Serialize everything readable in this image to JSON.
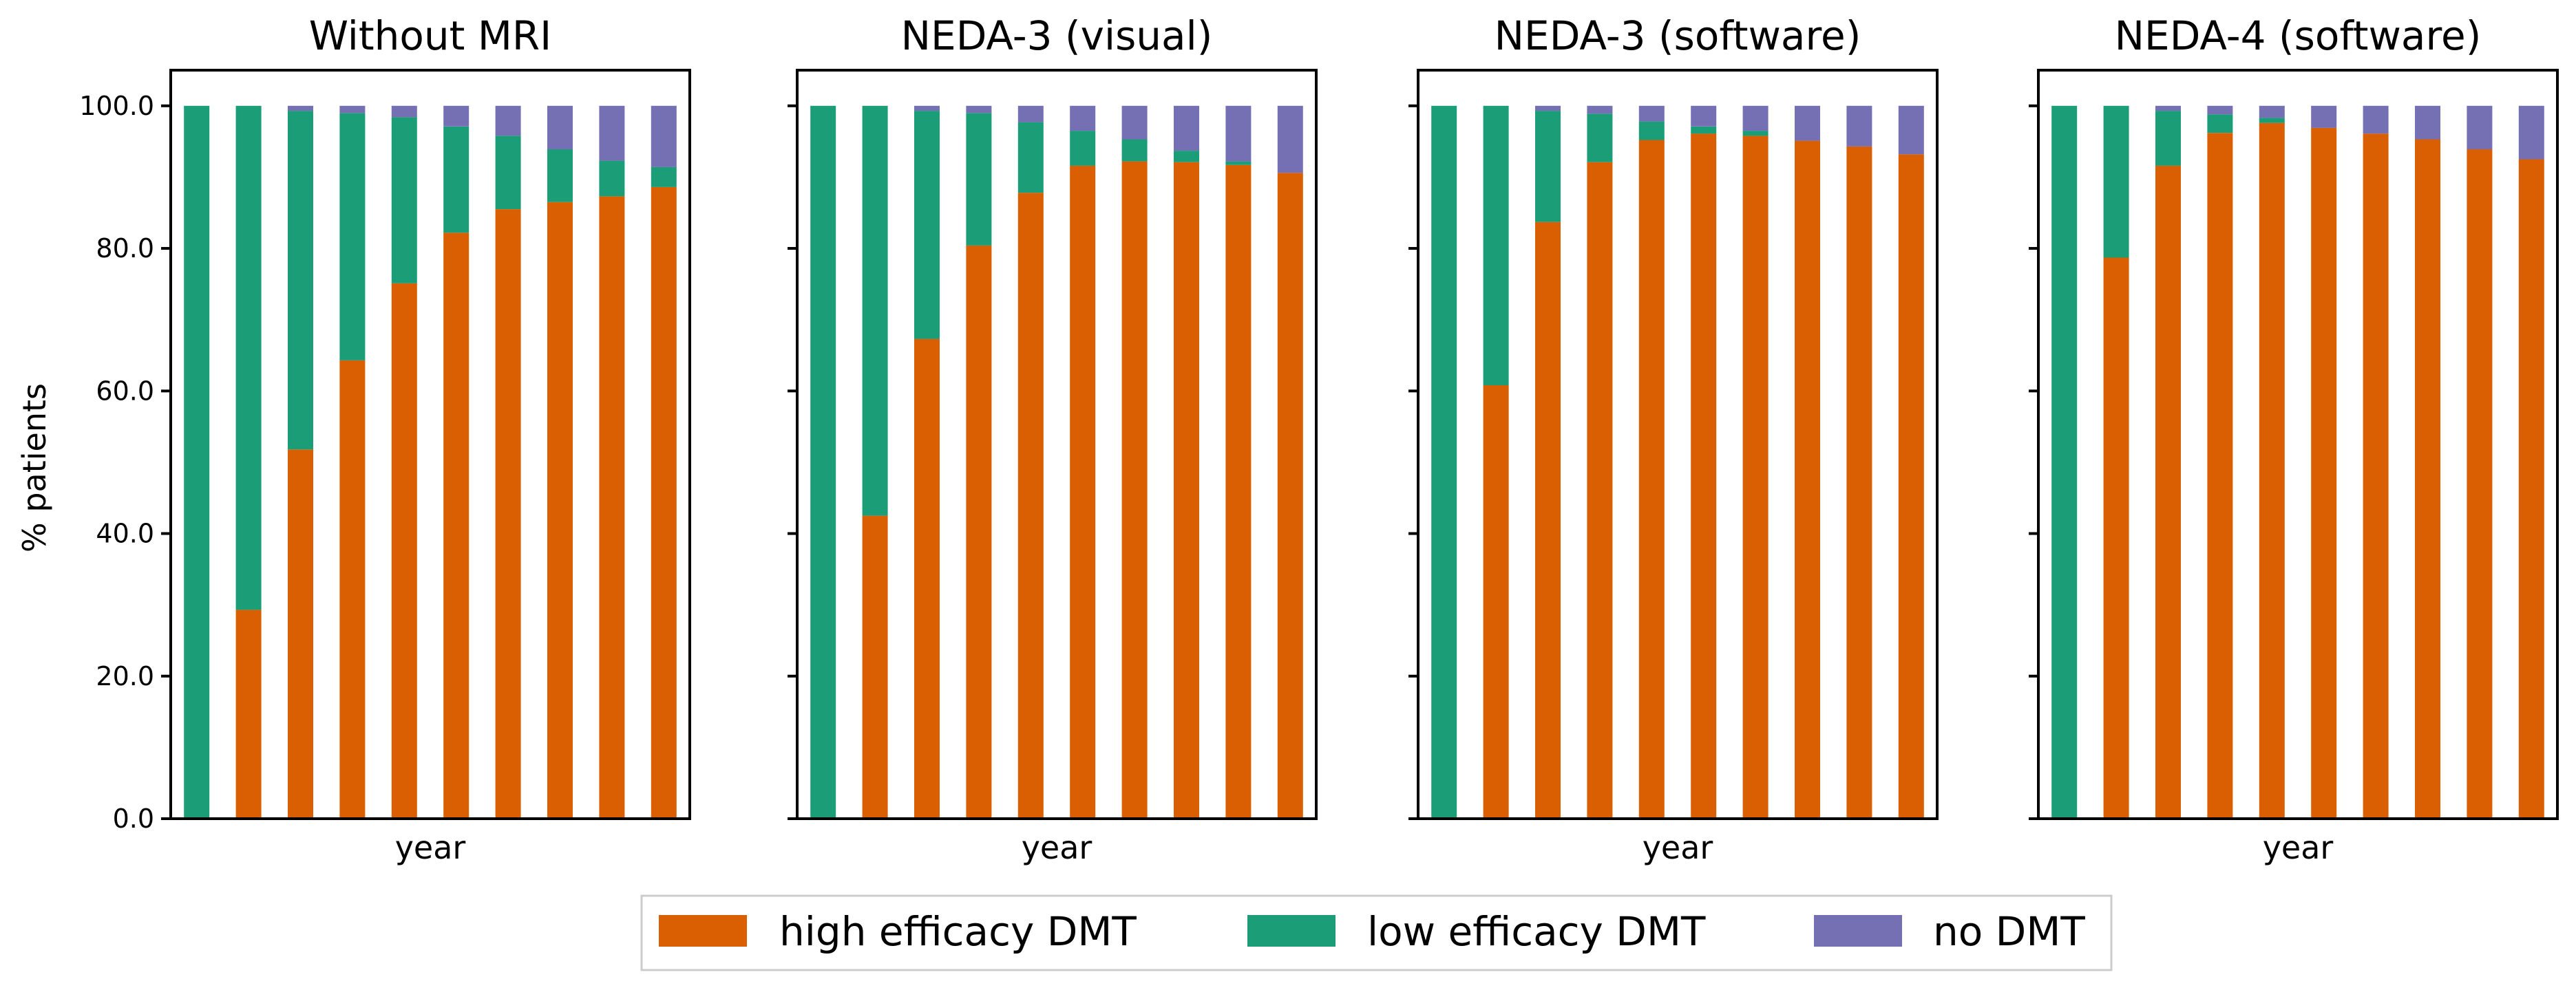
{
  "chart_data": {
    "type": "bar",
    "stacked": true,
    "ylabel": "% patients",
    "ylim": [
      0,
      105
    ],
    "yticks": [
      0,
      20,
      40,
      60,
      80,
      100
    ],
    "ytick_labels": [
      "0.0",
      "20.0",
      "40.0",
      "60.0",
      "80.0",
      "100.0"
    ],
    "colors": {
      "high": "#d95f02",
      "low": "#1b9e77",
      "none": "#7570b3"
    },
    "legend": {
      "position": "bottom-center",
      "entries": [
        {
          "key": "high",
          "label": "high efficacy DMT"
        },
        {
          "key": "low",
          "label": "low efficacy DMT"
        },
        {
          "key": "none",
          "label": "no DMT"
        }
      ]
    },
    "panels": [
      {
        "title": "Without MRI",
        "xlabel": "year",
        "series": [
          {
            "name": "high efficacy DMT",
            "key": "high",
            "values": [
              0,
              29.3,
              51.8,
              64.3,
              75.1,
              82.2,
              85.5,
              86.5,
              87.3,
              88.6
            ]
          },
          {
            "name": "low efficacy DMT",
            "key": "low",
            "values": [
              100,
              70.7,
              47.5,
              34.7,
              23.3,
              14.9,
              10.3,
              7.4,
              5.0,
              2.8
            ]
          },
          {
            "name": "no DMT",
            "key": "none",
            "values": [
              0,
              0,
              0.7,
              1.0,
              1.6,
              2.9,
              4.2,
              6.1,
              7.7,
              8.6
            ]
          }
        ]
      },
      {
        "title": "NEDA-3 (visual)",
        "xlabel": "year",
        "series": [
          {
            "name": "high efficacy DMT",
            "key": "high",
            "values": [
              0,
              42.5,
              67.3,
              80.4,
              87.8,
              91.6,
              92.2,
              92.1,
              91.7,
              90.6
            ]
          },
          {
            "name": "low efficacy DMT",
            "key": "low",
            "values": [
              100,
              57.5,
              32.0,
              18.6,
              9.9,
              4.9,
              3.1,
              1.6,
              0.5,
              0
            ]
          },
          {
            "name": "no DMT",
            "key": "none",
            "values": [
              0,
              0,
              0.7,
              1.0,
              2.3,
              3.5,
              4.7,
              6.3,
              7.8,
              9.4
            ]
          }
        ]
      },
      {
        "title": "NEDA-3 (software)",
        "xlabel": "year",
        "series": [
          {
            "name": "high efficacy DMT",
            "key": "high",
            "values": [
              0,
              60.8,
              83.7,
              92.1,
              95.2,
              96.1,
              95.8,
              95.1,
              94.3,
              93.2
            ]
          },
          {
            "name": "low efficacy DMT",
            "key": "low",
            "values": [
              100,
              39.2,
              15.6,
              6.8,
              2.6,
              1.0,
              0.7,
              0,
              0,
              0
            ]
          },
          {
            "name": "no DMT",
            "key": "none",
            "values": [
              0,
              0,
              0.7,
              1.1,
              2.2,
              2.9,
              3.5,
              4.9,
              5.7,
              6.8
            ]
          }
        ]
      },
      {
        "title": "NEDA-4 (software)",
        "xlabel": "year",
        "series": [
          {
            "name": "high efficacy DMT",
            "key": "high",
            "values": [
              0,
              78.7,
              91.6,
              96.2,
              97.6,
              96.9,
              96.1,
              95.3,
              93.9,
              92.5
            ]
          },
          {
            "name": "low efficacy DMT",
            "key": "low",
            "values": [
              100,
              21.3,
              7.7,
              2.6,
              0.7,
              0,
              0,
              0,
              0,
              0
            ]
          },
          {
            "name": "no DMT",
            "key": "none",
            "values": [
              0,
              0,
              0.7,
              1.2,
              1.7,
              3.1,
              3.9,
              4.7,
              6.1,
              7.5
            ]
          }
        ]
      }
    ]
  }
}
